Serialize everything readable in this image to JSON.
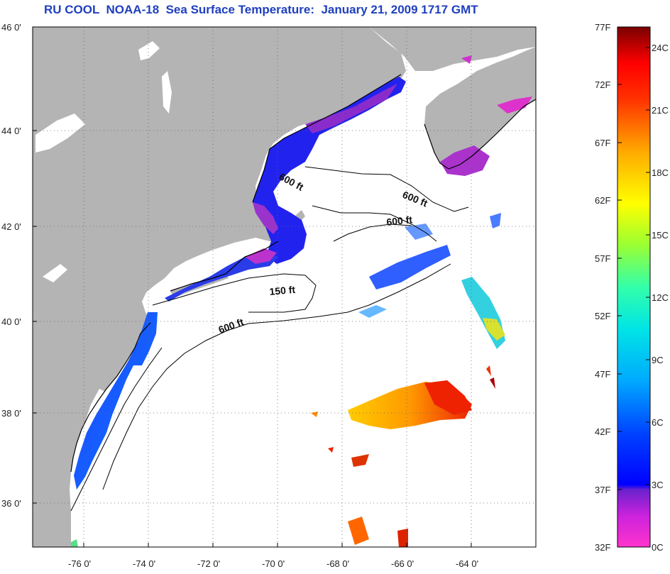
{
  "header": {
    "title": "RU COOL  NOAA-18  Sea Surface Temperature:  January 21, 2009 1717 GMT"
  },
  "axes": {
    "lat_labels": [
      "46 0'",
      "44 0'",
      "42 0'",
      "40 0'",
      "38 0'",
      "36 0'"
    ],
    "lon_labels": [
      "-76 0'",
      "-74 0'",
      "-72 0'",
      "-70 0'",
      "-68 0'",
      "-66 0'",
      "-64 0'"
    ]
  },
  "isobaths": [
    {
      "text": "600 ft",
      "rotate": 28
    },
    {
      "text": "600 ft",
      "rotate": 22
    },
    {
      "text": "600 ft",
      "rotate": -6
    },
    {
      "text": "150 ft",
      "rotate": -5
    },
    {
      "text": "600 ft",
      "rotate": -20
    }
  ],
  "colorbar": {
    "f_labels": [
      "77F",
      "72F",
      "67F",
      "62F",
      "57F",
      "52F",
      "47F",
      "42F",
      "37F",
      "32F"
    ],
    "c_labels": [
      "24C",
      "21C",
      "18C",
      "15C",
      "12C",
      "9C",
      "6C",
      "3C",
      "0C"
    ]
  },
  "colors": {
    "land": "#b4b4b4",
    "ocean": "#ffffff",
    "title": "#1f3fbf"
  }
}
